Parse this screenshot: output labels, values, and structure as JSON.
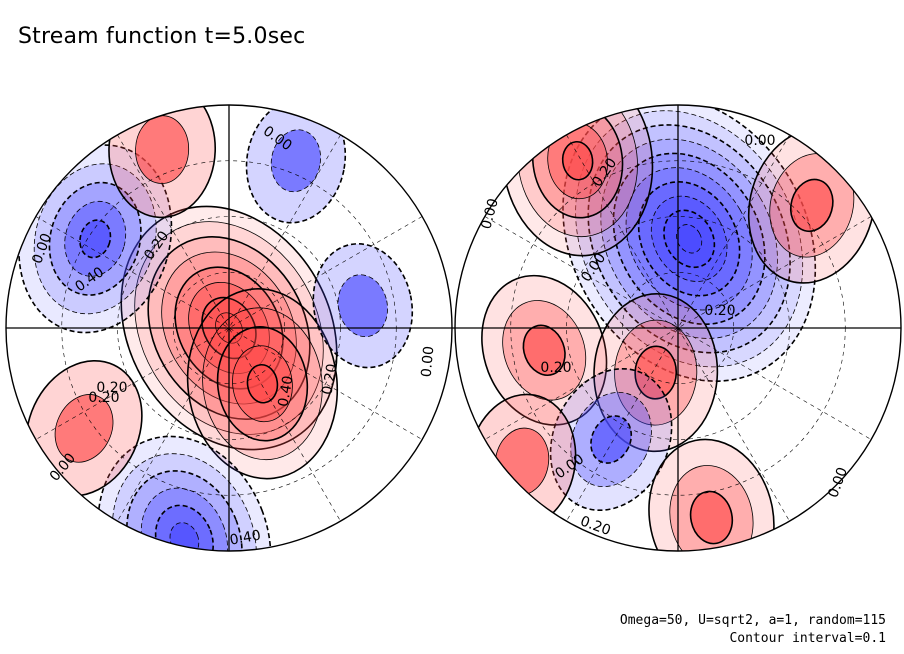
{
  "title": "Stream function t=5.0sec",
  "notes": {
    "line1": "Omega=50, U=sqrt2, a=1, random=115",
    "line2": "Contour interval=0.1"
  },
  "colors": {
    "positive": "#ff4a4a",
    "negative": "#4a4aff",
    "background": "#ffffff",
    "line": "#000000"
  },
  "chart_data": {
    "type": "heatmap",
    "title": "Stream function t=5.0sec",
    "contour_interval": 0.1,
    "projection": "orthographic-two-hemispheres",
    "grid": true,
    "panels": [
      {
        "name": "left-hemisphere",
        "contour_labels": [
          "0.20",
          "0.00",
          "0.20",
          "0.40",
          "0.00",
          "0.00",
          "0.20",
          "0.40",
          "0.20",
          "0.00",
          "0.40"
        ],
        "features": [
          {
            "sign": "positive",
            "u": 0.0,
            "v": 0.0,
            "amp": 0.75
          },
          {
            "sign": "positive",
            "u": 0.15,
            "v": 0.25,
            "amp": 0.45
          },
          {
            "sign": "negative",
            "u": -0.6,
            "v": -0.4,
            "amp": 0.45
          },
          {
            "sign": "negative",
            "u": -0.2,
            "v": 0.95,
            "amp": 0.55
          },
          {
            "sign": "positive",
            "u": -0.3,
            "v": -0.8,
            "amp": 0.2
          },
          {
            "sign": "positive",
            "u": -0.65,
            "v": 0.45,
            "amp": 0.22
          },
          {
            "sign": "negative",
            "u": 0.6,
            "v": -0.1,
            "amp": 0.15
          },
          {
            "sign": "negative",
            "u": 0.3,
            "v": -0.75,
            "amp": 0.15
          }
        ]
      },
      {
        "name": "right-hemisphere",
        "contour_labels": [
          "0.00",
          "0.00",
          "0.00",
          "0.20",
          "0.20",
          "0.00",
          "0.20",
          "0.00",
          "0.20"
        ],
        "features": [
          {
            "sign": "negative",
            "u": 0.05,
            "v": -0.4,
            "amp": 0.95
          },
          {
            "sign": "positive",
            "u": -0.45,
            "v": -0.75,
            "amp": 0.45
          },
          {
            "sign": "positive",
            "u": 0.6,
            "v": -0.55,
            "amp": 0.3
          },
          {
            "sign": "positive",
            "u": -0.6,
            "v": 0.1,
            "amp": 0.28
          },
          {
            "sign": "positive",
            "u": -0.1,
            "v": 0.2,
            "amp": 0.3
          },
          {
            "sign": "negative",
            "u": -0.3,
            "v": 0.5,
            "amp": 0.25
          },
          {
            "sign": "positive",
            "u": 0.15,
            "v": 0.85,
            "amp": 0.3
          },
          {
            "sign": "positive",
            "u": -0.7,
            "v": 0.6,
            "amp": 0.2
          }
        ]
      }
    ]
  }
}
